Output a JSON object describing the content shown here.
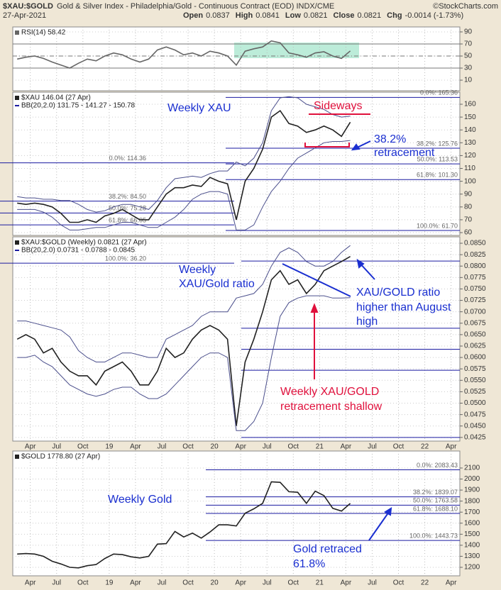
{
  "header": {
    "symbol": "$XAU:$GOLD",
    "description": "Gold & Silver Index - Philadelphia/Gold - Continuous Contract (EOD) INDX/CME",
    "brand": "©StockCharts.com",
    "date": "27-Apr-2021",
    "quote": [
      [
        "Open",
        "0.0837"
      ],
      [
        "High",
        "0.0841"
      ],
      [
        "Low",
        "0.0821"
      ],
      [
        "Close",
        "0.0821"
      ],
      [
        "Chg",
        "-0.0014 (-1.73%)"
      ]
    ]
  },
  "chart_data": [
    {
      "type": "line",
      "categories": [
        null,
        null,
        "Apr",
        null,
        null,
        "Jul",
        null,
        null,
        "Oct",
        null,
        null,
        "19",
        null,
        null,
        "Apr",
        null,
        null,
        "Jul",
        null,
        null,
        "Oct",
        null,
        null,
        "20",
        null,
        null,
        "Apr",
        null,
        null,
        "Jul",
        null,
        null,
        "Oct",
        null,
        null,
        "21",
        null,
        null,
        "Apr",
        null,
        null,
        "Jul",
        null,
        null,
        "Oct",
        null,
        null,
        "22",
        null,
        null,
        "Apr"
      ],
      "ylim": [
        -7.6,
        98.2
      ],
      "yticks": [
        10,
        30,
        50,
        70,
        90
      ],
      "levels": [
        {
          "value": 70
        },
        {
          "value": 50
        },
        {
          "value": 30
        }
      ],
      "series": [
        {
          "name": "RSI(14) 58.42",
          "color": "#666666",
          "values": [
            45,
            48,
            50,
            46,
            40,
            35,
            30,
            38,
            45,
            42,
            50,
            55,
            52,
            45,
            40,
            45,
            60,
            65,
            60,
            52,
            55,
            50,
            58,
            55,
            50,
            35,
            58,
            62,
            65,
            75,
            72,
            55,
            52,
            48,
            55,
            57,
            50,
            46,
            58.42,
            null,
            null,
            null,
            null,
            null,
            null,
            null,
            null,
            null,
            null,
            null,
            null
          ]
        }
      ]
    },
    {
      "type": "line",
      "categories": [
        null,
        null,
        "Apr",
        null,
        null,
        "Jul",
        null,
        null,
        "Oct",
        null,
        null,
        "19",
        null,
        null,
        "Apr",
        null,
        null,
        "Jul",
        null,
        null,
        "Oct",
        null,
        null,
        "20",
        null,
        null,
        "Apr",
        null,
        null,
        "Jul",
        null,
        null,
        "Oct",
        null,
        null,
        "21",
        null,
        null,
        "Apr",
        null,
        null,
        "Jul",
        null,
        null,
        "Oct",
        null,
        null,
        "22",
        null,
        null,
        "Apr"
      ],
      "ylim": [
        57.8,
        169.4
      ],
      "yticks": [
        60,
        70,
        80,
        90,
        100,
        110,
        120,
        130,
        140,
        150,
        160
      ],
      "bb_legend": "BB(20,2.0) 131.75 - 141.27 - 150.78",
      "series": [
        {
          "name": "$XAU 146.04 (27 Apr)",
          "color": "#222222",
          "values": [
            83,
            82,
            83,
            82,
            80,
            75,
            68,
            68,
            70,
            68,
            73,
            75,
            78,
            74,
            70,
            70,
            80,
            90,
            95,
            95,
            97,
            96,
            103,
            100,
            98,
            70,
            100,
            110,
            125,
            150,
            155,
            145,
            143,
            138,
            140,
            143,
            140,
            135,
            146.04,
            null,
            null,
            null,
            null,
            null,
            null,
            null,
            null,
            null,
            null,
            null,
            null
          ]
        },
        {
          "color": "#4b4f8c",
          "values": [
            88,
            87,
            87,
            86,
            86,
            85,
            85,
            82,
            78,
            76,
            77,
            80,
            82,
            82,
            80,
            78,
            85,
            95,
            102,
            103,
            104,
            103,
            106,
            108,
            108,
            115,
            112,
            118,
            130,
            155,
            165,
            166,
            165,
            160,
            158,
            156,
            152,
            150,
            150.78,
            null,
            null,
            null,
            null,
            null,
            null,
            null,
            null,
            null,
            null,
            null,
            null
          ]
        },
        {
          "color": "#4b4f8c",
          "values": [
            78,
            78,
            78,
            76,
            72,
            66,
            62,
            62,
            63,
            64,
            64,
            66,
            68,
            68,
            66,
            64,
            64,
            68,
            72,
            78,
            86,
            90,
            92,
            92,
            90,
            62,
            62,
            66,
            80,
            92,
            100,
            110,
            118,
            122,
            126,
            130,
            131,
            131,
            131.75,
            null,
            null,
            null,
            null,
            null,
            null,
            null,
            null,
            null,
            null,
            null,
            null
          ]
        }
      ],
      "levels": [
        {
          "value": 165.36,
          "label": "0.0%: 165.36"
        },
        {
          "value": 125.76,
          "label": "38.2%: 125.76"
        },
        {
          "value": 113.53,
          "label": "50.0%: 113.53"
        },
        {
          "value": 101.3,
          "label": "61.8%: 101.30"
        },
        {
          "value": 61.7,
          "label": "100.0%: 61.70"
        }
      ],
      "levels_left": [
        {
          "value": 114.36,
          "label": "0.0%: 114.36"
        },
        {
          "value": 84.5,
          "label": "38.2%: 84.50"
        },
        {
          "value": 75.28,
          "label": "50.0%: 75.28"
        },
        {
          "value": 66.05,
          "label": "61.8%: 66.05"
        },
        {
          "value": 36.2,
          "label": "100.0%: 36.20"
        }
      ],
      "annotations": [
        {
          "text": "Weekly XAU",
          "color": "#1a2fd0"
        },
        {
          "text": "Sideways",
          "color": "#e0103c"
        },
        {
          "text": "38.2%",
          "color": "#1a2fd0"
        },
        {
          "text": "retracement",
          "color": "#1a2fd0"
        }
      ]
    },
    {
      "type": "line",
      "categories": [
        null,
        null,
        "Apr",
        null,
        null,
        "Jul",
        null,
        null,
        "Oct",
        null,
        null,
        "19",
        null,
        null,
        "Apr",
        null,
        null,
        "Jul",
        null,
        null,
        "Oct",
        null,
        null,
        "20",
        null,
        null,
        "Apr",
        null,
        null,
        "Jul",
        null,
        null,
        "Oct",
        null,
        null,
        "21",
        null,
        null,
        "Apr",
        null,
        null,
        "Jul",
        null,
        null,
        "Oct",
        null,
        null,
        "22",
        null,
        null,
        "Apr"
      ],
      "ylim": [
        0.0417,
        0.0864
      ],
      "yticks": [
        {
          "value": 0.0425,
          "label": "0.0425"
        },
        {
          "value": 0.045,
          "label": "0.0450"
        },
        {
          "value": 0.0475,
          "label": "0.0475"
        },
        {
          "value": 0.05,
          "label": "0.0500"
        },
        {
          "value": 0.0525,
          "label": "0.0525"
        },
        {
          "value": 0.055,
          "label": "0.0550"
        },
        {
          "value": 0.0575,
          "label": "0.0575"
        },
        {
          "value": 0.06,
          "label": "0.0600"
        },
        {
          "value": 0.0625,
          "label": "0.0625"
        },
        {
          "value": 0.065,
          "label": "0.0650"
        },
        {
          "value": 0.0675,
          "label": "0.0675"
        },
        {
          "value": 0.07,
          "label": "0.0700"
        },
        {
          "value": 0.0725,
          "label": "0.0725"
        },
        {
          "value": 0.075,
          "label": "0.0750"
        },
        {
          "value": 0.0775,
          "label": "0.0775"
        },
        {
          "value": 0.08,
          "label": "0.0800"
        },
        {
          "value": 0.0825,
          "label": "0.0825"
        },
        {
          "value": 0.085,
          "label": "0.0850"
        }
      ],
      "bb_legend": "BB(20,2.0) 0.0731 - 0.0788 - 0.0845",
      "series": [
        {
          "name": "$XAU:$GOLD (Weekly) 0.0821 (27 Apr)",
          "color": "#222222",
          "values": [
            0.064,
            0.065,
            0.064,
            0.061,
            0.062,
            0.059,
            0.057,
            0.056,
            0.056,
            0.054,
            0.057,
            0.058,
            0.059,
            0.057,
            0.054,
            0.054,
            0.057,
            0.062,
            0.06,
            0.061,
            0.064,
            0.066,
            0.067,
            0.066,
            0.064,
            0.045,
            0.059,
            0.064,
            0.07,
            0.077,
            0.079,
            0.076,
            0.077,
            0.074,
            0.076,
            0.079,
            0.08,
            0.081,
            0.0821,
            null,
            null,
            null,
            null,
            null,
            null,
            null,
            null,
            null,
            null,
            null,
            null
          ]
        },
        {
          "color": "#4b4f8c",
          "values": [
            0.068,
            0.068,
            0.0675,
            0.067,
            0.0665,
            0.066,
            0.0645,
            0.0615,
            0.06,
            0.059,
            0.059,
            0.06,
            0.061,
            0.061,
            0.0605,
            0.06,
            0.06,
            0.064,
            0.065,
            0.066,
            0.067,
            0.069,
            0.07,
            0.07,
            0.07,
            0.073,
            0.0735,
            0.074,
            0.076,
            0.08,
            0.083,
            0.084,
            0.083,
            0.081,
            0.08,
            0.08,
            0.081,
            0.083,
            0.0845,
            null,
            null,
            null,
            null,
            null,
            null,
            null,
            null,
            null,
            null,
            null,
            null
          ]
        },
        {
          "color": "#4b4f8c",
          "values": [
            0.06,
            0.06,
            0.0605,
            0.059,
            0.058,
            0.056,
            0.054,
            0.053,
            0.052,
            0.0515,
            0.052,
            0.053,
            0.0535,
            0.0535,
            0.052,
            0.051,
            0.051,
            0.052,
            0.054,
            0.056,
            0.058,
            0.06,
            0.061,
            0.061,
            0.06,
            0.044,
            0.044,
            0.046,
            0.05,
            0.06,
            0.069,
            0.072,
            0.073,
            0.0735,
            0.0735,
            0.0735,
            0.073,
            0.073,
            0.0731,
            null,
            null,
            null,
            null,
            null,
            null,
            null,
            null,
            null,
            null,
            null,
            null
          ]
        }
      ],
      "levels": [
        {
          "value": 0.0811
        },
        {
          "value": 0.0664
        },
        {
          "value": 0.0618
        },
        {
          "value": 0.0572
        },
        {
          "value": 0.0425
        }
      ],
      "annotations": [
        {
          "text": "Weekly",
          "color": "#1a2fd0"
        },
        {
          "text": "XAU/Gold ratio",
          "color": "#1a2fd0"
        },
        {
          "text": "XAU/GOLD ratio",
          "color": "#1a2fd0"
        },
        {
          "text": "higher than August",
          "color": "#1a2fd0"
        },
        {
          "text": "high",
          "color": "#1a2fd0"
        },
        {
          "text": "Weekly XAU/GOLD",
          "color": "#e0103c"
        },
        {
          "text": "retracement shallow",
          "color": "#e0103c"
        }
      ]
    },
    {
      "type": "line",
      "categories": [
        null,
        null,
        "Apr",
        null,
        null,
        "Jul",
        null,
        null,
        "Oct",
        null,
        null,
        "19",
        null,
        null,
        "Apr",
        null,
        null,
        "Jul",
        null,
        null,
        "Oct",
        null,
        null,
        "20",
        null,
        null,
        "Apr",
        null,
        null,
        "Jul",
        null,
        null,
        "Oct",
        null,
        null,
        "21",
        null,
        null,
        "Apr",
        null,
        null,
        "Jul",
        null,
        null,
        "Oct",
        null,
        null,
        "22",
        null,
        null,
        "Apr"
      ],
      "ylim": [
        1123,
        2254
      ],
      "yticks": [
        1200,
        1300,
        1400,
        1500,
        1600,
        1700,
        1800,
        1900,
        2000,
        2100
      ],
      "series": [
        {
          "name": "$GOLD 1778.80 (27 Apr)",
          "color": "#222222",
          "values": [
            1320,
            1325,
            1320,
            1300,
            1255,
            1230,
            1200,
            1195,
            1215,
            1225,
            1280,
            1320,
            1315,
            1295,
            1285,
            1300,
            1410,
            1415,
            1525,
            1475,
            1510,
            1465,
            1520,
            1585,
            1585,
            1575,
            1690,
            1730,
            1780,
            1975,
            1970,
            1885,
            1880,
            1780,
            1890,
            1850,
            1735,
            1710,
            1778.8,
            null,
            null,
            null,
            null,
            null,
            null,
            null,
            null,
            null,
            null,
            null,
            null
          ]
        }
      ],
      "levels": [
        {
          "value": 2083.43,
          "label": "0.0%: 2083.43"
        },
        {
          "value": 1839.07,
          "label": "38.2%: 1839.07"
        },
        {
          "value": 1763.58,
          "label": "50.0%: 1763.58"
        },
        {
          "value": 1688.1,
          "label": "61.8%: 1688.10"
        },
        {
          "value": 1443.73,
          "label": "100.0%: 1443.73"
        }
      ],
      "annotations": [
        {
          "text": "Weekly Gold",
          "color": "#1a2fd0"
        },
        {
          "text": "Gold retraced",
          "color": "#1a2fd0"
        },
        {
          "text": "61.8%",
          "color": "#1a2fd0"
        }
      ]
    }
  ]
}
